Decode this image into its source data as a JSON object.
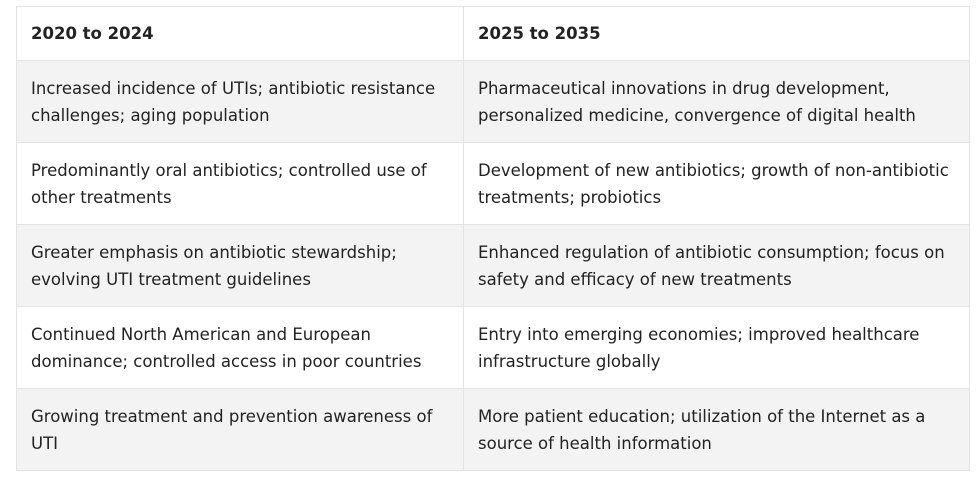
{
  "table": {
    "headers": [
      "2020 to 2024",
      "2025 to 2035"
    ],
    "rows": [
      [
        "Increased incidence of UTIs; antibiotic resistance challenges; aging population",
        "Pharmaceutical innovations in drug development, personalized medicine, convergence of digital health"
      ],
      [
        "Predominantly oral antibiotics; controlled use of other treatments",
        "Development of new antibiotics; growth of non-antibiotic treatments; probiotics"
      ],
      [
        "Greater emphasis on antibiotic stewardship; evolving UTI treatment guidelines",
        "Enhanced regulation of antibiotic consumption; focus on safety and efficacy of new treatments"
      ],
      [
        "Continued North American and European dominance; controlled access in poor countries",
        "Entry into emerging economies; improved healthcare infrastructure globally"
      ],
      [
        "Growing treatment and prevention awareness of UTI",
        "More patient education; utilization of the Internet as a source of health information"
      ]
    ]
  }
}
